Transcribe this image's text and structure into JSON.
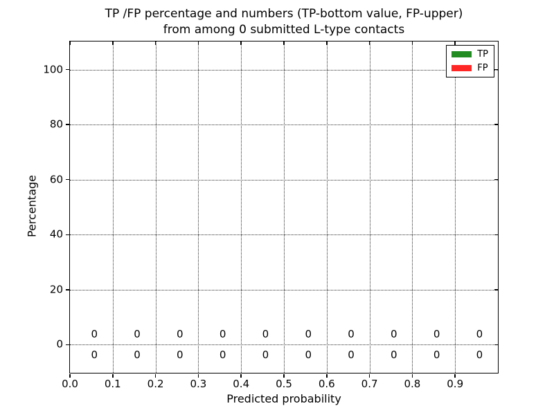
{
  "title": {
    "line1": "TP /FP percentage and numbers (TP-bottom value, FP-upper)",
    "line2": "from among 0 submitted L-type contacts"
  },
  "axes": {
    "xlabel": "Predicted probability",
    "ylabel": "Percentage",
    "x_tick_labels": [
      "0.0",
      "0.1",
      "0.2",
      "0.3",
      "0.4",
      "0.5",
      "0.6",
      "0.7",
      "0.8",
      "0.9"
    ],
    "x_tick_values": [
      0,
      0.1,
      0.2,
      0.3,
      0.4,
      0.5,
      0.6,
      0.7,
      0.8,
      0.9
    ],
    "y_tick_labels": [
      "0",
      "20",
      "40",
      "60",
      "80",
      "100"
    ],
    "y_tick_values": [
      0,
      20,
      40,
      60,
      80,
      100
    ],
    "xlim": [
      0,
      1
    ],
    "ylim": [
      -10.25,
      110.25
    ],
    "grid": "dotted"
  },
  "legend": {
    "position": "upper right",
    "items": [
      {
        "label": "TP",
        "color": "#228b22"
      },
      {
        "label": "FP",
        "color": "#ff2626"
      }
    ]
  },
  "chart_data": {
    "type": "bar",
    "title": "TP /FP percentage and numbers (TP-bottom value, FP-upper) from among 0 submitted L-type contacts",
    "xlabel": "Predicted probability",
    "ylabel": "Percentage",
    "bins": [
      0.05,
      0.15,
      0.25,
      0.35,
      0.45,
      0.55,
      0.65,
      0.75,
      0.85,
      0.95
    ],
    "series": [
      {
        "name": "TP",
        "color": "#228b22",
        "values": [
          0,
          0,
          0,
          0,
          0,
          0,
          0,
          0,
          0,
          0
        ]
      },
      {
        "name": "FP",
        "color": "#ff2626",
        "values": [
          0,
          0,
          0,
          0,
          0,
          0,
          0,
          0,
          0,
          0
        ]
      }
    ],
    "bar_value_labels": {
      "fp_upper": [
        "0",
        "0",
        "0",
        "0",
        "0",
        "0",
        "0",
        "0",
        "0",
        "0"
      ],
      "tp_bottom": [
        "0",
        "0",
        "0",
        "0",
        "0",
        "0",
        "0",
        "0",
        "0",
        "0"
      ]
    },
    "xlim": [
      0,
      1
    ],
    "ylim": [
      -10,
      110
    ],
    "grid": true,
    "legend_position": "upper right"
  }
}
